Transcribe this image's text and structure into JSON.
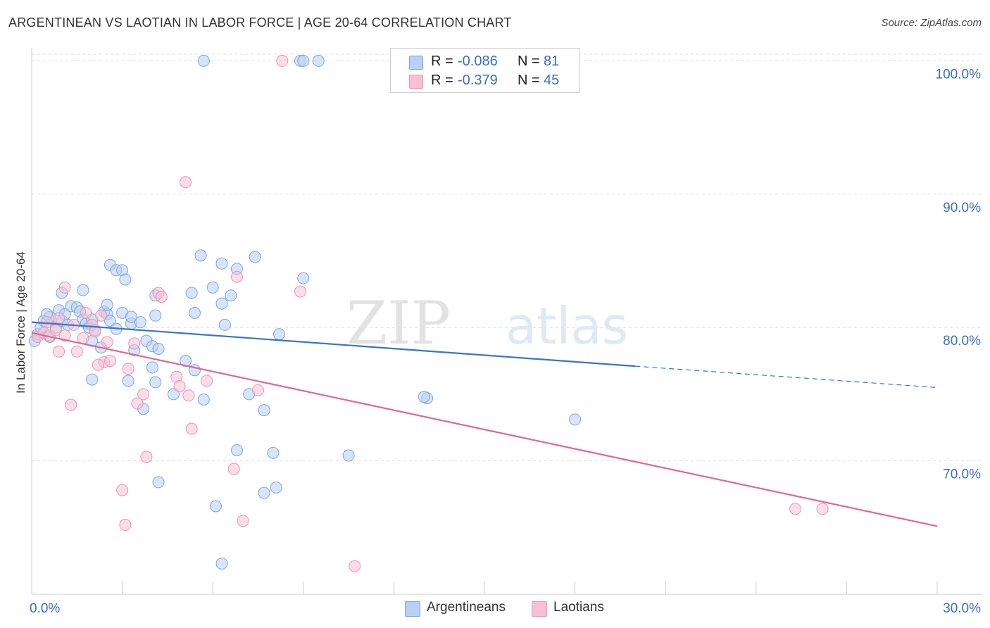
{
  "title": "ARGENTINEAN VS LAOTIAN IN LABOR FORCE | AGE 20-64 CORRELATION CHART",
  "source": "Source: ZipAtlas.com",
  "watermark": {
    "zip": "ZIP",
    "atlas": "atlas"
  },
  "legend_top": {
    "rows": [
      {
        "r_label": "R =",
        "r_value": "-0.086",
        "n_label": "N =",
        "n_value": "81"
      },
      {
        "r_label": "R =",
        "r_value": "-0.379",
        "n_label": "N =",
        "n_value": "45"
      }
    ]
  },
  "legend_bottom": {
    "items": [
      {
        "label": "Argentineans"
      },
      {
        "label": "Laotians"
      }
    ]
  },
  "colors": {
    "blue_fill": "#b8d0f2",
    "blue_stroke": "#7aa6e0",
    "blue_line": "#3674d0",
    "pink_fill": "#f7c1d3",
    "pink_stroke": "#ec93b0",
    "pink_line": "#e0688f",
    "axis_text": "#3a6fc4",
    "grid": "#dddddd"
  },
  "chart_data": {
    "type": "scatter",
    "title": "ARGENTINEAN VS LAOTIAN IN LABOR FORCE | AGE 20-64 CORRELATION CHART",
    "xlabel": "",
    "ylabel": "In Labor Force | Age 20-64",
    "xlim": [
      0,
      30
    ],
    "ylim": [
      60,
      101.5
    ],
    "x_tick_labels": [
      "0.0%",
      "30.0%"
    ],
    "y_ticks": [
      70,
      80,
      90,
      100
    ],
    "y_tick_labels": [
      "70.0%",
      "80.0%",
      "90.0%",
      "100.0%"
    ],
    "series": [
      {
        "name": "Argentineans",
        "r": -0.086,
        "n": 81,
        "trend": {
          "x0": 0,
          "y0": 80.4,
          "x1": 20.0,
          "y1": 77.1,
          "dashed_to_x": 30,
          "dashed_to_y": 75.5
        },
        "points": [
          [
            5.7,
            100.0
          ],
          [
            8.9,
            100.0
          ],
          [
            9.5,
            100.0
          ],
          [
            9.0,
            100.0
          ],
          [
            0.1,
            79.0
          ],
          [
            0.2,
            79.5
          ],
          [
            0.3,
            80.0
          ],
          [
            0.4,
            80.5
          ],
          [
            0.6,
            80.8
          ],
          [
            0.8,
            80.0
          ],
          [
            1.0,
            80.5
          ],
          [
            0.5,
            81.0
          ],
          [
            0.9,
            81.3
          ],
          [
            1.1,
            81.0
          ],
          [
            1.2,
            80.2
          ],
          [
            1.3,
            81.6
          ],
          [
            1.5,
            81.5
          ],
          [
            1.6,
            81.2
          ],
          [
            1.7,
            80.6
          ],
          [
            1.8,
            80.3
          ],
          [
            1.9,
            80.0
          ],
          [
            2.0,
            80.6
          ],
          [
            2.1,
            79.8
          ],
          [
            2.4,
            81.2
          ],
          [
            2.5,
            81.0
          ],
          [
            2.6,
            80.5
          ],
          [
            2.8,
            79.9
          ],
          [
            3.0,
            81.1
          ],
          [
            3.3,
            80.3
          ],
          [
            3.6,
            80.4
          ],
          [
            1.0,
            82.6
          ],
          [
            1.7,
            82.8
          ],
          [
            2.5,
            81.7
          ],
          [
            2.6,
            84.7
          ],
          [
            2.8,
            84.3
          ],
          [
            3.0,
            84.3
          ],
          [
            3.1,
            83.6
          ],
          [
            4.1,
            82.4
          ],
          [
            4.1,
            80.9
          ],
          [
            3.3,
            80.8
          ],
          [
            2.3,
            78.5
          ],
          [
            2.0,
            79.0
          ],
          [
            3.4,
            78.3
          ],
          [
            3.8,
            79.0
          ],
          [
            4.0,
            78.6
          ],
          [
            4.2,
            78.4
          ],
          [
            5.3,
            82.6
          ],
          [
            5.4,
            81.1
          ],
          [
            5.6,
            85.4
          ],
          [
            6.0,
            83.0
          ],
          [
            6.3,
            84.8
          ],
          [
            6.3,
            81.8
          ],
          [
            6.4,
            80.2
          ],
          [
            6.6,
            82.4
          ],
          [
            6.8,
            84.4
          ],
          [
            7.4,
            85.3
          ],
          [
            8.2,
            79.5
          ],
          [
            9.0,
            83.7
          ],
          [
            4.0,
            77.0
          ],
          [
            4.1,
            75.9
          ],
          [
            5.1,
            77.5
          ],
          [
            5.4,
            76.8
          ],
          [
            3.2,
            76.0
          ],
          [
            2.0,
            76.1
          ],
          [
            3.7,
            73.9
          ],
          [
            4.7,
            75.0
          ],
          [
            5.7,
            74.6
          ],
          [
            7.2,
            75.0
          ],
          [
            7.7,
            73.8
          ],
          [
            13.1,
            74.7
          ],
          [
            13.0,
            74.8
          ],
          [
            18.0,
            73.1
          ],
          [
            6.8,
            70.8
          ],
          [
            8.0,
            70.6
          ],
          [
            10.5,
            70.4
          ],
          [
            4.2,
            68.4
          ],
          [
            6.1,
            66.6
          ],
          [
            7.7,
            67.6
          ],
          [
            8.1,
            68.0
          ],
          [
            6.3,
            62.3
          ],
          [
            0.6,
            79.3
          ]
        ]
      },
      {
        "name": "Laotians",
        "r": -0.379,
        "n": 45,
        "trend": {
          "x0": 0,
          "y0": 79.6,
          "x1": 30,
          "y1": 65.1
        },
        "points": [
          [
            8.3,
            100.0
          ],
          [
            5.1,
            90.9
          ],
          [
            0.2,
            79.3
          ],
          [
            0.4,
            79.6
          ],
          [
            0.6,
            79.4
          ],
          [
            0.8,
            79.8
          ],
          [
            0.5,
            80.4
          ],
          [
            0.9,
            80.7
          ],
          [
            1.1,
            79.4
          ],
          [
            1.4,
            80.2
          ],
          [
            1.7,
            79.2
          ],
          [
            1.8,
            81.1
          ],
          [
            2.0,
            80.2
          ],
          [
            2.3,
            80.9
          ],
          [
            1.1,
            83.0
          ],
          [
            1.5,
            78.2
          ],
          [
            0.9,
            78.2
          ],
          [
            2.1,
            79.7
          ],
          [
            2.5,
            78.9
          ],
          [
            3.4,
            78.8
          ],
          [
            2.4,
            77.4
          ],
          [
            2.6,
            77.5
          ],
          [
            2.2,
            77.2
          ],
          [
            3.2,
            76.9
          ],
          [
            4.2,
            82.6
          ],
          [
            4.3,
            82.3
          ],
          [
            6.8,
            83.8
          ],
          [
            8.9,
            82.7
          ],
          [
            4.8,
            76.3
          ],
          [
            5.8,
            76.0
          ],
          [
            3.7,
            75.0
          ],
          [
            4.9,
            75.6
          ],
          [
            5.2,
            74.9
          ],
          [
            1.3,
            74.2
          ],
          [
            3.5,
            74.3
          ],
          [
            7.5,
            75.3
          ],
          [
            5.3,
            72.4
          ],
          [
            3.8,
            70.3
          ],
          [
            6.7,
            69.4
          ],
          [
            3.0,
            67.8
          ],
          [
            3.1,
            65.2
          ],
          [
            7.0,
            65.5
          ],
          [
            10.7,
            62.1
          ],
          [
            25.3,
            66.4
          ],
          [
            26.2,
            66.4
          ]
        ]
      }
    ]
  }
}
